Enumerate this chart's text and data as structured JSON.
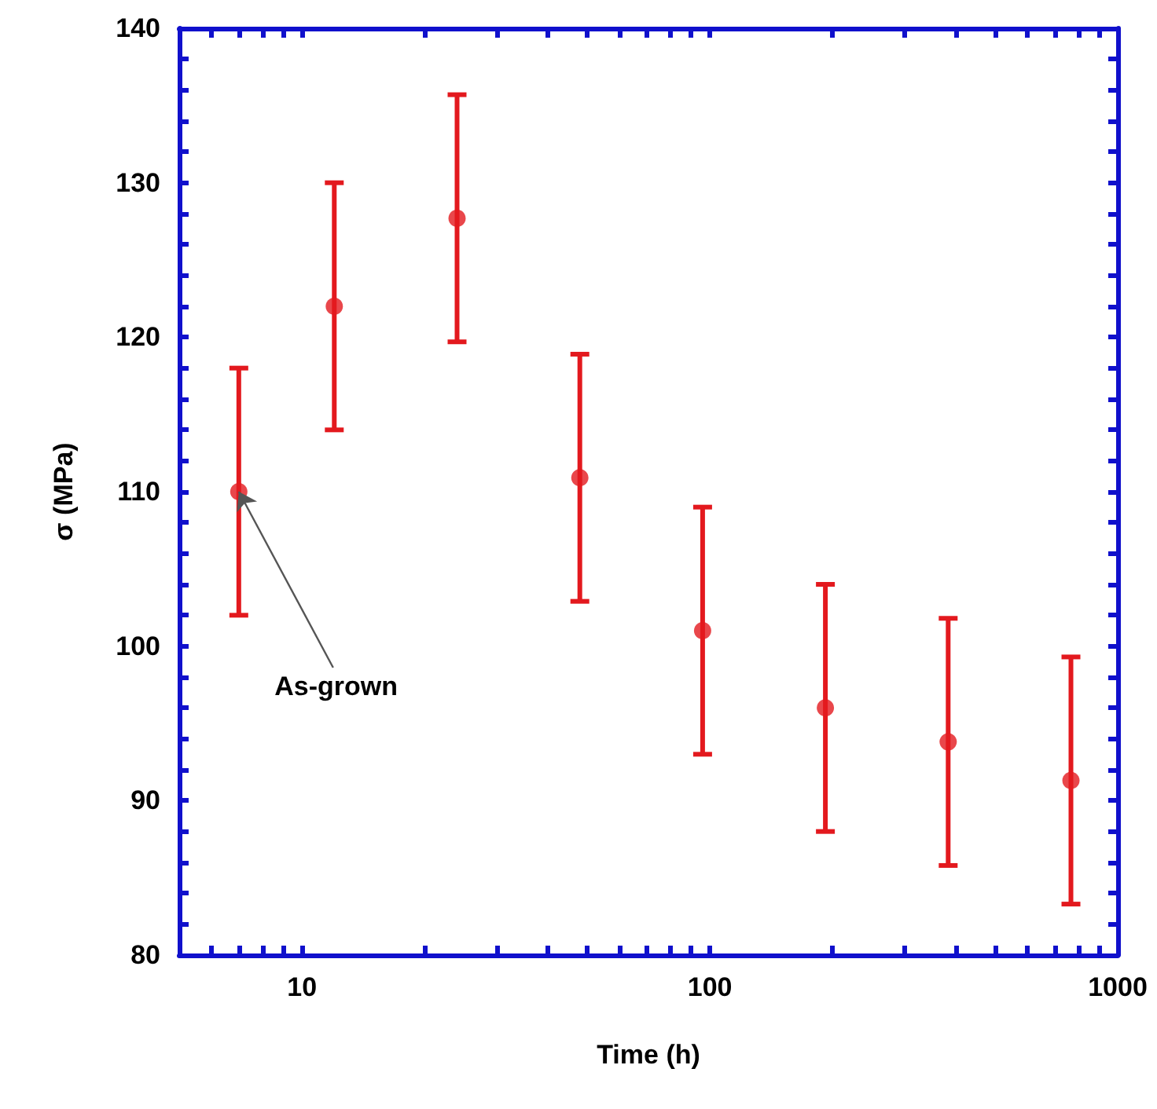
{
  "chart_data": {
    "type": "scatter",
    "xlabel": "Time (h)",
    "ylabel": "σ (MPa)",
    "log": "x",
    "x": [
      7,
      12,
      24,
      48,
      96,
      192,
      384,
      768
    ],
    "series": [
      {
        "color": "#e3191e",
        "values": [
          110,
          122,
          127.7,
          110.9,
          101,
          96,
          93.8,
          91.3
        ],
        "errors": [
          8,
          8,
          8,
          8,
          8,
          8,
          8,
          8
        ]
      }
    ],
    "marker": "circle",
    "grid": false,
    "xlim": [
      5,
      1000
    ],
    "xticks": [
      {
        "value": 6,
        "label": null
      },
      {
        "value": 7,
        "label": null
      },
      {
        "value": 8,
        "label": null
      },
      {
        "value": 9,
        "label": null
      },
      10,
      {
        "value": 20,
        "label": null
      },
      {
        "value": 30,
        "label": null
      },
      {
        "value": 40,
        "label": null
      },
      {
        "value": 50,
        "label": null
      },
      {
        "value": 60,
        "label": null
      },
      {
        "value": 70,
        "label": null
      },
      {
        "value": 80,
        "label": null
      },
      {
        "value": 90,
        "label": null
      },
      100,
      {
        "value": 200,
        "label": null
      },
      {
        "value": 300,
        "label": null
      },
      {
        "value": 400,
        "label": null
      },
      {
        "value": 500,
        "label": null
      },
      {
        "value": 600,
        "label": null
      },
      {
        "value": 700,
        "label": null
      },
      {
        "value": 800,
        "label": null
      },
      {
        "value": 900,
        "label": null
      },
      1000
    ],
    "ylim": [
      80,
      140
    ],
    "yticks": [
      80,
      {
        "value": 82,
        "label": null
      },
      {
        "value": 84,
        "label": null
      },
      {
        "value": 86,
        "label": null
      },
      {
        "value": 88,
        "label": null
      },
      90,
      {
        "value": 92,
        "label": null
      },
      {
        "value": 94,
        "label": null
      },
      {
        "value": 96,
        "label": null
      },
      {
        "value": 98,
        "label": null
      },
      100,
      {
        "value": 102,
        "label": null
      },
      {
        "value": 104,
        "label": null
      },
      {
        "value": 106,
        "label": null
      },
      {
        "value": 108,
        "label": null
      },
      110,
      {
        "value": 112,
        "label": null
      },
      {
        "value": 114,
        "label": null
      },
      {
        "value": 116,
        "label": null
      },
      {
        "value": 118,
        "label": null
      },
      120,
      {
        "value": 122,
        "label": null
      },
      {
        "value": 124,
        "label": null
      },
      {
        "value": 126,
        "label": null
      },
      {
        "value": 128,
        "label": null
      },
      130,
      {
        "value": 132,
        "label": null
      },
      {
        "value": 134,
        "label": null
      },
      {
        "value": 136,
        "label": null
      },
      {
        "value": 138,
        "label": null
      },
      140
    ],
    "annotations": [
      {
        "text": "As-grown",
        "x": 7,
        "y": 110
      }
    ]
  }
}
